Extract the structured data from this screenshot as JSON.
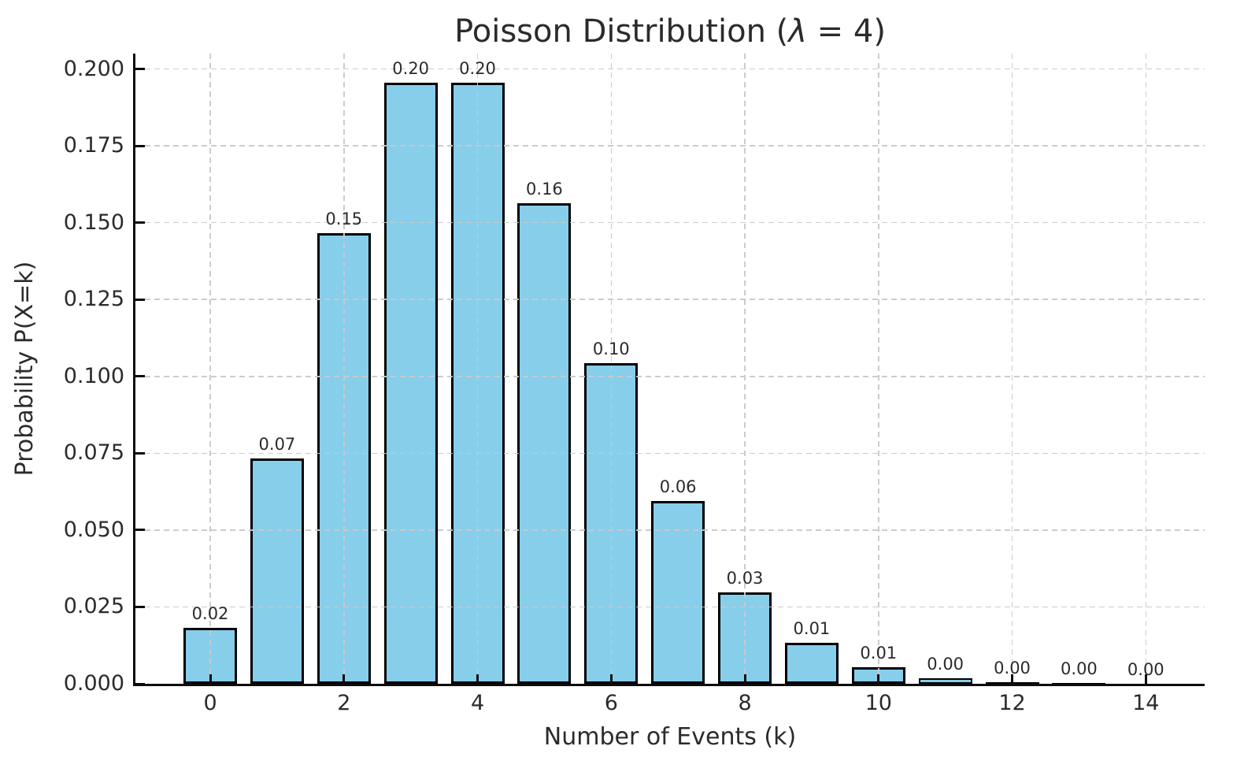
{
  "chart_data": {
    "type": "bar",
    "title": "Poisson Distribution (λ = 4)",
    "title_parts": {
      "prefix": "Poisson Distribution (",
      "lambda": "λ",
      "suffix": " = 4)"
    },
    "xlabel": "Number of Events (k)",
    "ylabel": "Probability P(X=k)",
    "categories": [
      0,
      1,
      2,
      3,
      4,
      5,
      6,
      7,
      8,
      9,
      10,
      11,
      12,
      13,
      14
    ],
    "values": [
      0.0183,
      0.0733,
      0.1465,
      0.1954,
      0.1954,
      0.1563,
      0.1042,
      0.0595,
      0.0298,
      0.0132,
      0.0053,
      0.0019,
      0.0006,
      0.0002,
      0.0001
    ],
    "bar_value_labels": [
      "0.02",
      "0.07",
      "0.15",
      "0.20",
      "0.20",
      "0.16",
      "0.10",
      "0.06",
      "0.03",
      "0.01",
      "0.01",
      "0.00",
      "0.00",
      "0.00",
      "0.00"
    ],
    "bar_width_fraction": 0.8,
    "bar_color": "#87CEEB",
    "bar_edge_color": "#000000",
    "xlim": [
      -1.12,
      14.88
    ],
    "ylim": [
      0,
      0.205
    ],
    "xticks": [
      0,
      2,
      4,
      6,
      8,
      10,
      12,
      14
    ],
    "xtick_labels": [
      "0",
      "2",
      "4",
      "6",
      "8",
      "10",
      "12",
      "14"
    ],
    "yticks": [
      0.0,
      0.025,
      0.05,
      0.075,
      0.1,
      0.125,
      0.15,
      0.175,
      0.2
    ],
    "ytick_labels": [
      "0.000",
      "0.025",
      "0.050",
      "0.075",
      "0.100",
      "0.125",
      "0.150",
      "0.175",
      "0.200"
    ],
    "grid": true,
    "grid_style": "dashed",
    "grid_color": "#c9c9c9",
    "legend": "none",
    "spines": [
      "left",
      "bottom"
    ],
    "text_color": "#2b2b2b"
  }
}
